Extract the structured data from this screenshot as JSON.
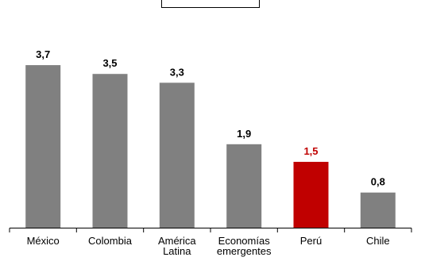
{
  "chart_data": {
    "type": "bar",
    "categories": [
      "México",
      "Colombia",
      "América Latina",
      "Economías emergentes",
      "Perú",
      "Chile"
    ],
    "category_label_lines": [
      [
        "México"
      ],
      [
        "Colombia"
      ],
      [
        "América",
        "Latina"
      ],
      [
        "Economías",
        "emergentes"
      ],
      [
        "Perú"
      ],
      [
        "Chile"
      ]
    ],
    "values": [
      3.7,
      3.5,
      3.3,
      1.9,
      1.5,
      0.8
    ],
    "value_labels": [
      "3,7",
      "3,5",
      "3,3",
      "1,9",
      "1,5",
      "0,8"
    ],
    "ylim": [
      0,
      4.1
    ],
    "grid": false,
    "legend": "none",
    "colors": {
      "default_bar": "#808080",
      "highlight_bar": "#c00000",
      "default_label": "#000000",
      "highlight_label": "#c00000",
      "axis": "#000000"
    },
    "highlight_category": "Perú"
  }
}
